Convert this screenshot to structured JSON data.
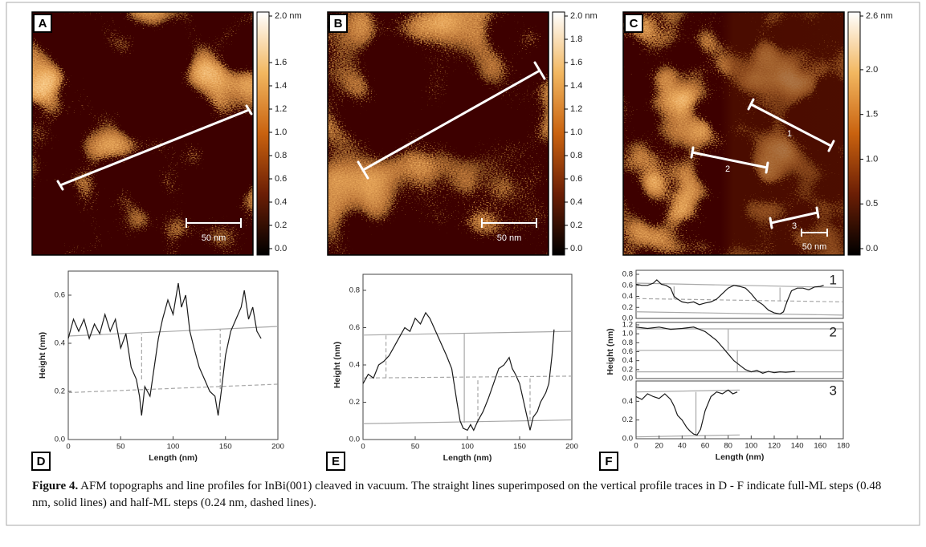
{
  "images": [
    {
      "label": "A",
      "scale_bar": "50 nm",
      "colorbar": {
        "lim": [
          0,
          2.0
        ],
        "ticks": [
          {
            "value": 0,
            "label": "0.0"
          },
          0.2,
          0.4,
          0.6,
          0.8,
          {
            "value": 1.0,
            "label": "1.0"
          },
          1.2,
          1.4,
          1.6,
          {
            "value": 2.0,
            "label": "2.0 nm"
          }
        ]
      }
    },
    {
      "label": "B",
      "scale_bar": "50 nm",
      "colorbar": {
        "lim": [
          0,
          2.0
        ],
        "ticks": [
          {
            "value": 0,
            "label": "0.0"
          },
          0.2,
          0.4,
          0.6,
          0.8,
          {
            "value": 1.0,
            "label": "1.0"
          },
          1.2,
          1.4,
          1.6,
          1.8,
          {
            "value": 2.0,
            "label": "2.0 nm"
          }
        ]
      }
    },
    {
      "label": "C",
      "scale_bar": "50 nm",
      "line_labels": [
        "1",
        "2",
        "3"
      ],
      "colorbar": {
        "lim": [
          0,
          2.6
        ],
        "ticks": [
          {
            "value": 0,
            "label": "0.0"
          },
          0.5,
          {
            "value": 1.0,
            "label": "1.0"
          },
          1.5,
          {
            "value": 2.0,
            "label": "2.0"
          },
          {
            "value": 2.6,
            "label": "2.6 nm"
          }
        ]
      }
    }
  ],
  "chart_data": [
    {
      "type": "line",
      "panel": "D",
      "xlabel": "Length (nm)",
      "ylabel": "Height (nm)",
      "color": "#1a1a1a",
      "xlim": [
        0,
        200
      ],
      "xticks": [
        0,
        50,
        100,
        150,
        200
      ],
      "ylim": [
        0,
        0.7
      ],
      "yticks": [
        {
          "value": 0,
          "label": "0.0"
        },
        0.2,
        0.4,
        0.6
      ],
      "x": [
        0,
        5,
        10,
        15,
        20,
        25,
        30,
        35,
        40,
        45,
        50,
        55,
        60,
        65,
        68,
        70,
        73,
        78,
        82,
        86,
        90,
        95,
        100,
        105,
        108,
        112,
        116,
        120,
        125,
        130,
        135,
        140,
        143,
        146,
        150,
        155,
        160,
        165,
        168,
        172,
        176,
        180,
        184
      ],
      "values": [
        0.42,
        0.5,
        0.45,
        0.5,
        0.42,
        0.48,
        0.44,
        0.52,
        0.45,
        0.5,
        0.38,
        0.44,
        0.3,
        0.25,
        0.18,
        0.1,
        0.22,
        0.18,
        0.3,
        0.42,
        0.5,
        0.58,
        0.52,
        0.65,
        0.55,
        0.6,
        0.45,
        0.38,
        0.3,
        0.25,
        0.2,
        0.18,
        0.1,
        0.2,
        0.35,
        0.45,
        0.5,
        0.55,
        0.62,
        0.5,
        0.55,
        0.45,
        0.42
      ],
      "guides": [
        {
          "x": [
            0,
            200
          ],
          "y": [
            0.43,
            0.47
          ],
          "dash": false
        },
        {
          "x": [
            0,
            200
          ],
          "y": [
            0.195,
            0.23
          ],
          "dash": true
        },
        {
          "x": [
            70,
            70
          ],
          "y": [
            0.25,
            0.44
          ],
          "dash": true
        },
        {
          "x": [
            145,
            145
          ],
          "y": [
            0.21,
            0.46
          ],
          "dash": true
        }
      ]
    },
    {
      "type": "line",
      "panel": "E",
      "xlabel": "Length (nm)",
      "ylabel": "Height (nm)",
      "color": "#1a1a1a",
      "xlim": [
        0,
        200
      ],
      "xticks": [
        0,
        50,
        100,
        150,
        200
      ],
      "ylim": [
        0,
        0.8
      ],
      "yticks": [
        {
          "value": 0,
          "label": "0.0"
        },
        0.2,
        0.4,
        0.6,
        0.8
      ],
      "x": [
        0,
        5,
        10,
        15,
        20,
        25,
        30,
        35,
        40,
        45,
        50,
        55,
        60,
        64,
        68,
        72,
        76,
        80,
        85,
        90,
        93,
        96,
        100,
        103,
        106,
        110,
        115,
        120,
        125,
        130,
        135,
        140,
        143,
        146,
        150,
        154,
        158,
        160,
        163,
        167,
        170,
        175,
        178,
        181,
        183
      ],
      "values": [
        0.3,
        0.35,
        0.33,
        0.4,
        0.42,
        0.45,
        0.5,
        0.55,
        0.6,
        0.58,
        0.65,
        0.62,
        0.68,
        0.65,
        0.6,
        0.55,
        0.5,
        0.45,
        0.38,
        0.2,
        0.1,
        0.06,
        0.05,
        0.08,
        0.05,
        0.1,
        0.15,
        0.22,
        0.3,
        0.38,
        0.4,
        0.44,
        0.38,
        0.35,
        0.3,
        0.2,
        0.1,
        0.05,
        0.12,
        0.15,
        0.2,
        0.25,
        0.3,
        0.45,
        0.59
      ],
      "guides": [
        {
          "x": [
            0,
            200
          ],
          "y": [
            0.56,
            0.58
          ],
          "dash": false
        },
        {
          "x": [
            0,
            200
          ],
          "y": [
            0.085,
            0.105
          ],
          "dash": false
        },
        {
          "x": [
            0,
            200
          ],
          "y": [
            0.33,
            0.34
          ],
          "dash": true
        },
        {
          "x": [
            22,
            22
          ],
          "y": [
            0.33,
            0.56
          ],
          "dash": true
        },
        {
          "x": [
            97,
            97
          ],
          "y": [
            0.09,
            0.57
          ],
          "dash": false
        },
        {
          "x": [
            110,
            110
          ],
          "y": [
            0.09,
            0.33
          ],
          "dash": true
        },
        {
          "x": [
            160,
            160
          ],
          "y": [
            0.1,
            0.33
          ],
          "dash": true
        }
      ]
    },
    {
      "type": "line",
      "label": "1",
      "color": "#1a1a1a",
      "xlim": [
        0,
        180
      ],
      "ylim": [
        0,
        0.8
      ],
      "yticks": [
        {
          "value": 0,
          "label": "0.0"
        },
        0.2,
        0.4,
        0.6,
        0.8
      ],
      "x": [
        0,
        5,
        10,
        15,
        18,
        22,
        26,
        30,
        33,
        36,
        40,
        45,
        50,
        55,
        60,
        65,
        70,
        75,
        80,
        85,
        90,
        95,
        100,
        105,
        110,
        115,
        120,
        125,
        128,
        131,
        135,
        140,
        145,
        150,
        155,
        160,
        163
      ],
      "values": [
        0.62,
        0.6,
        0.6,
        0.64,
        0.7,
        0.62,
        0.6,
        0.55,
        0.4,
        0.35,
        0.3,
        0.28,
        0.3,
        0.25,
        0.28,
        0.3,
        0.35,
        0.45,
        0.55,
        0.6,
        0.58,
        0.55,
        0.45,
        0.32,
        0.25,
        0.15,
        0.1,
        0.08,
        0.12,
        0.3,
        0.5,
        0.55,
        0.55,
        0.52,
        0.57,
        0.58,
        0.6
      ],
      "guides": [
        {
          "x": [
            0,
            180
          ],
          "y": [
            0.64,
            0.56
          ],
          "dash": false
        },
        {
          "x": [
            0,
            180
          ],
          "y": [
            0.36,
            0.3
          ],
          "dash": true
        },
        {
          "x": [
            0,
            180
          ],
          "y": [
            0.12,
            0.06
          ],
          "dash": false
        },
        {
          "x": [
            33,
            33
          ],
          "y": [
            0.35,
            0.58
          ],
          "dash": false
        },
        {
          "x": [
            125,
            125
          ],
          "y": [
            0.31,
            0.56
          ],
          "dash": false
        }
      ]
    },
    {
      "type": "line",
      "label": "2",
      "ylabel": "Height (nm)",
      "color": "#1a1a1a",
      "xlim": [
        0,
        180
      ],
      "ylim": [
        0,
        1.2
      ],
      "yticks": [
        {
          "value": 0,
          "label": "0.0"
        },
        0.2,
        0.4,
        0.6,
        0.8,
        {
          "value": 1.0,
          "label": "1.0"
        },
        1.2
      ],
      "x": [
        0,
        10,
        20,
        30,
        40,
        50,
        55,
        60,
        65,
        70,
        75,
        80,
        85,
        90,
        95,
        100,
        105,
        110,
        115,
        120,
        125,
        130,
        138
      ],
      "values": [
        1.15,
        1.12,
        1.15,
        1.1,
        1.12,
        1.15,
        1.1,
        1.05,
        0.95,
        0.85,
        0.7,
        0.55,
        0.4,
        0.3,
        0.2,
        0.15,
        0.18,
        0.12,
        0.16,
        0.13,
        0.15,
        0.14,
        0.16
      ],
      "guides": [
        {
          "x": [
            0,
            180
          ],
          "y": [
            1.11,
            1.11
          ],
          "dash": false
        },
        {
          "x": [
            0,
            180
          ],
          "y": [
            0.63,
            0.63
          ],
          "dash": false
        },
        {
          "x": [
            0,
            180
          ],
          "y": [
            0.15,
            0.15
          ],
          "dash": false
        },
        {
          "x": [
            80,
            80
          ],
          "y": [
            0.63,
            1.11
          ],
          "dash": false
        },
        {
          "x": [
            88,
            88
          ],
          "y": [
            0.15,
            0.63
          ],
          "dash": false
        }
      ]
    },
    {
      "type": "line",
      "label": "3",
      "panel": "F",
      "xlabel": "Length (nm)",
      "color": "#1a1a1a",
      "xlim": [
        0,
        180
      ],
      "xticks": [
        0,
        20,
        40,
        60,
        80,
        100,
        120,
        140,
        160,
        180
      ],
      "ylim": [
        0,
        0.6
      ],
      "yticks": [
        {
          "value": 0,
          "label": "0.0"
        },
        0.2,
        0.4
      ],
      "x": [
        0,
        5,
        10,
        15,
        20,
        25,
        30,
        33,
        36,
        40,
        44,
        47,
        50,
        53,
        56,
        60,
        65,
        70,
        75,
        80,
        84,
        88
      ],
      "values": [
        0.45,
        0.42,
        0.48,
        0.45,
        0.43,
        0.48,
        0.42,
        0.35,
        0.25,
        0.2,
        0.12,
        0.08,
        0.05,
        0.04,
        0.1,
        0.3,
        0.45,
        0.5,
        0.48,
        0.52,
        0.48,
        0.5
      ],
      "guides": [
        {
          "x": [
            0,
            90
          ],
          "y": [
            0.5,
            0.52
          ],
          "dash": false
        },
        {
          "x": [
            0,
            90
          ],
          "y": [
            0.02,
            0.04
          ],
          "dash": false
        },
        {
          "x": [
            52,
            52
          ],
          "y": [
            0.03,
            0.5
          ],
          "dash": false
        }
      ]
    }
  ],
  "caption": {
    "lead": "Figure 4.",
    "text": " AFM topographs and line profiles for InBi(001) cleaved in vacuum. The straight lines superimposed on the vertical profile traces in D - F indicate full-ML steps (0.48 nm, solid lines) and half-ML steps (0.24 nm, dashed lines)."
  }
}
